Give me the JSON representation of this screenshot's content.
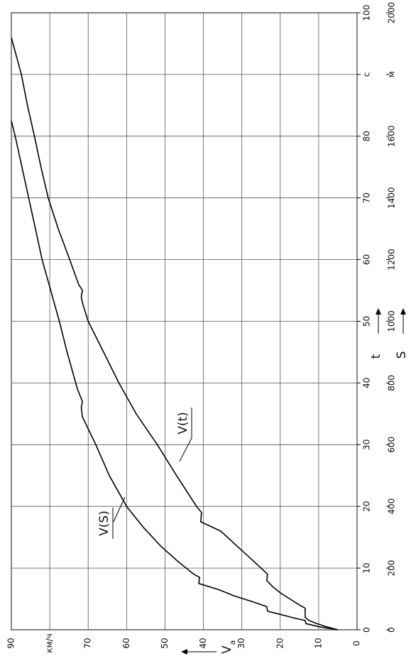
{
  "chart_data": {
    "type": "line",
    "y_label": "V",
    "y_label_sub": "a",
    "x_label": "t",
    "x2_label": "S",
    "ylim": [
      0,
      90
    ],
    "yticks": [
      0,
      10,
      20,
      30,
      40,
      50,
      60,
      70,
      {
        "value": 80,
        "label": "км/ч"
      },
      90
    ],
    "xlim": [
      0,
      100
    ],
    "xticks": [
      0,
      10,
      20,
      30,
      40,
      50,
      60,
      70,
      80,
      {
        "value": 90,
        "label": "c"
      },
      100
    ],
    "x2lim": [
      0,
      2000
    ],
    "x2ticks": [
      0,
      200,
      400,
      600,
      800,
      1000,
      1200,
      1400,
      1600,
      {
        "value": 1800,
        "label": "м"
      },
      2000
    ],
    "grid": true,
    "series": [
      {
        "name": "V(t)",
        "color": "#000000",
        "x": [
          0,
          0.5,
          1,
          1.5,
          2,
          3.5,
          4,
          5,
          6,
          7,
          8,
          9,
          10,
          12,
          14,
          16,
          17.5,
          19,
          20,
          25,
          30,
          35,
          40,
          45,
          50,
          53,
          54,
          55,
          56,
          60,
          65,
          70,
          75,
          80,
          85,
          90,
          96
        ],
        "values": [
          5,
          8,
          10.5,
          12.5,
          13.5,
          13.5,
          15,
          17.5,
          20,
          22,
          23.5,
          23.3,
          25,
          28.5,
          32,
          35.5,
          40.7,
          40.5,
          41.8,
          47,
          52,
          57.5,
          62,
          66,
          70,
          71.5,
          71.8,
          71.5,
          72.5,
          74.8,
          77.8,
          80.4,
          82.3,
          84,
          85.8,
          87.4,
          90
        ]
      },
      {
        "name": "V(S)",
        "color": "#000000",
        "axis": "x2",
        "x": [
          0,
          10,
          20,
          30,
          40,
          50,
          60,
          75,
          90,
          110,
          130,
          150,
          170,
          180,
          220,
          270,
          330,
          400,
          500,
          600,
          690,
          720,
          740,
          780,
          900,
          1000,
          1200,
          1400,
          1600,
          1650
        ],
        "values": [
          5,
          10,
          13.3,
          13.5,
          17,
          20,
          23.3,
          23.5,
          27,
          32,
          36,
          41.2,
          41,
          42.5,
          46.5,
          51,
          55.5,
          60,
          64.5,
          68,
          71.5,
          71.8,
          71.5,
          72.8,
          75.5,
          77.5,
          82,
          85.5,
          89,
          90
        ]
      }
    ]
  }
}
